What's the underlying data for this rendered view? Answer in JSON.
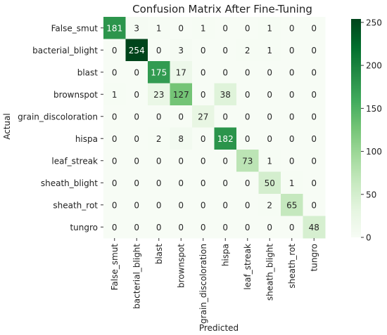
{
  "chart_data": {
    "type": "heatmap",
    "title": "Confusion Matrix After Fine-Tuning",
    "xlabel": "Predicted",
    "ylabel": "Actual",
    "row_labels": [
      "False_smut",
      "bacterial_blight",
      "blast",
      "brownspot",
      "grain_discoloration",
      "hispa",
      "leaf_streak",
      "sheath_blight",
      "sheath_rot",
      "tungro"
    ],
    "col_labels": [
      "False_smut",
      "bacterial_blight",
      "blast",
      "brownspot",
      "grain_discoloration",
      "hispa",
      "leaf_streak",
      "sheath_blight",
      "sheath_rot",
      "tungro"
    ],
    "values": [
      [
        181,
        3,
        1,
        0,
        1,
        0,
        0,
        1,
        0,
        0
      ],
      [
        0,
        254,
        0,
        3,
        0,
        0,
        2,
        1,
        0,
        0
      ],
      [
        0,
        0,
        175,
        17,
        0,
        0,
        0,
        0,
        0,
        0
      ],
      [
        1,
        0,
        23,
        127,
        0,
        38,
        0,
        0,
        0,
        0
      ],
      [
        0,
        0,
        0,
        0,
        27,
        0,
        0,
        0,
        0,
        0
      ],
      [
        0,
        0,
        2,
        8,
        0,
        182,
        0,
        0,
        0,
        0
      ],
      [
        0,
        0,
        0,
        0,
        0,
        0,
        73,
        1,
        0,
        0
      ],
      [
        0,
        0,
        0,
        0,
        0,
        0,
        0,
        50,
        1,
        0
      ],
      [
        0,
        0,
        0,
        0,
        0,
        0,
        0,
        2,
        65,
        0
      ],
      [
        0,
        0,
        0,
        0,
        0,
        0,
        0,
        0,
        0,
        48
      ]
    ],
    "colorbar": {
      "range": [
        0,
        254
      ],
      "ticks": [
        0,
        50,
        100,
        150,
        200,
        250
      ]
    },
    "colormap": {
      "low": "#f7fcf5",
      "high": "#00441b"
    },
    "annotation_colors": {
      "dark_text": "#262626",
      "light_text": "#ffffff"
    }
  }
}
